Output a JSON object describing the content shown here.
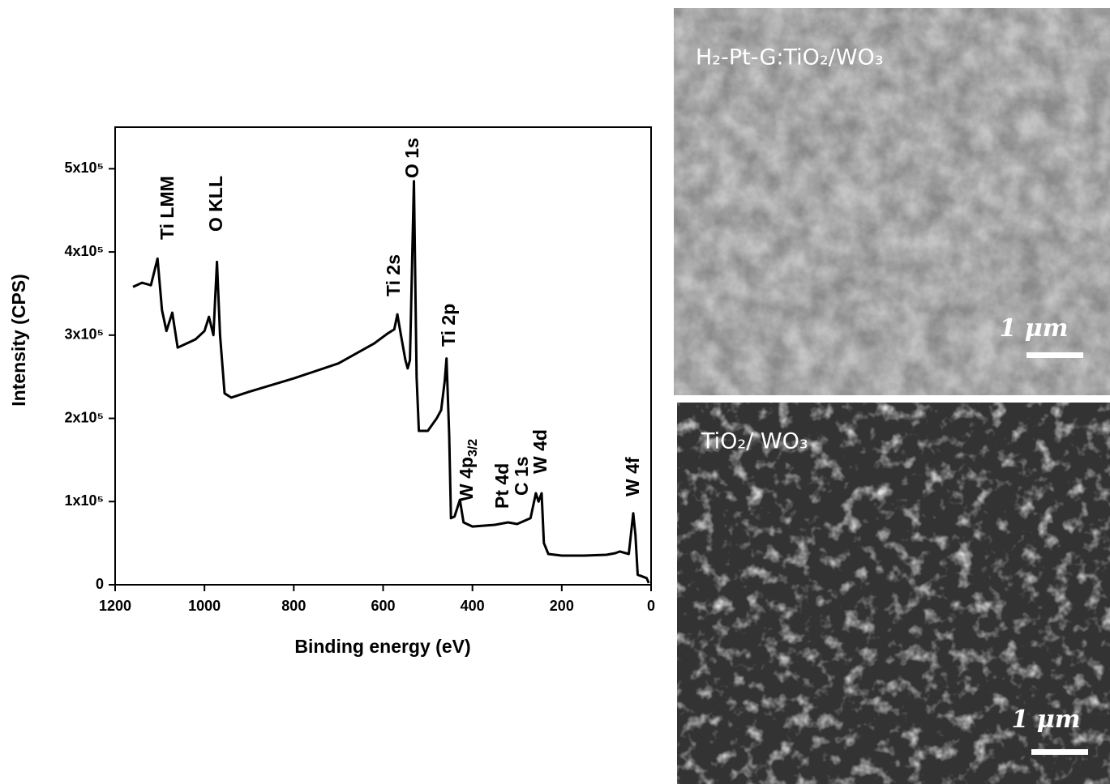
{
  "chart_data": {
    "type": "line",
    "xlabel": "Binding energy (eV)",
    "ylabel": "Intensity (CPS)",
    "color": "#000000",
    "xlim": [
      1200,
      0
    ],
    "xticks": [
      1200,
      1000,
      800,
      600,
      400,
      200,
      0
    ],
    "ylim": [
      0,
      550000
    ],
    "yticks": [
      0,
      {
        "value": 100000,
        "label": "1x10⁵"
      },
      {
        "value": 200000,
        "label": "2x10⁵"
      },
      {
        "value": 300000,
        "label": "3x10⁵"
      },
      {
        "value": 400000,
        "label": "4x10⁵"
      },
      {
        "value": 500000,
        "label": "5x10⁵"
      }
    ],
    "x": [
      1160,
      1140,
      1120,
      1105,
      1095,
      1085,
      1072,
      1060,
      1040,
      1020,
      1000,
      990,
      980,
      972,
      965,
      955,
      940,
      900,
      800,
      700,
      620,
      590,
      575,
      568,
      560,
      550,
      545,
      540,
      531,
      525,
      520,
      500,
      480,
      470,
      462,
      458,
      452,
      448,
      440,
      428,
      420,
      400,
      350,
      320,
      300,
      270,
      258,
      252,
      245,
      240,
      230,
      200,
      150,
      100,
      80,
      70,
      50,
      40,
      35,
      30,
      20,
      10,
      5
    ],
    "values": [
      358000,
      363000,
      360000,
      392000,
      330000,
      305000,
      327000,
      285000,
      290000,
      295000,
      305000,
      322000,
      300000,
      388000,
      300000,
      230000,
      225000,
      232000,
      248000,
      266000,
      290000,
      302000,
      307000,
      325000,
      300000,
      270000,
      260000,
      270000,
      485000,
      250000,
      185000,
      185000,
      200000,
      210000,
      245000,
      272000,
      180000,
      80000,
      82000,
      102000,
      75000,
      70000,
      72000,
      75000,
      73000,
      80000,
      110000,
      100000,
      110000,
      50000,
      37000,
      35000,
      35000,
      36000,
      38000,
      40000,
      37000,
      86000,
      60000,
      12000,
      10000,
      8000,
      2000
    ],
    "annotations": [
      {
        "text": "Ti LMM"
      },
      {
        "text": "O KLL"
      },
      {
        "text": "O 1s"
      },
      {
        "text": "Ti 2s"
      },
      {
        "text": "Ti 2p"
      },
      {
        "text": "W 4p",
        "sub": "3/2"
      },
      {
        "text": "Pt 4d"
      },
      {
        "text": "C 1s"
      },
      {
        "text": "W 4d"
      },
      {
        "text": "W 4f"
      }
    ]
  },
  "images": [
    {
      "label": "H₂-Pt-G:TiO₂/WO₃",
      "scale_bar": "1 μm"
    },
    {
      "label": "TiO₂/ WO₃",
      "scale_bar": "1 μm"
    }
  ]
}
